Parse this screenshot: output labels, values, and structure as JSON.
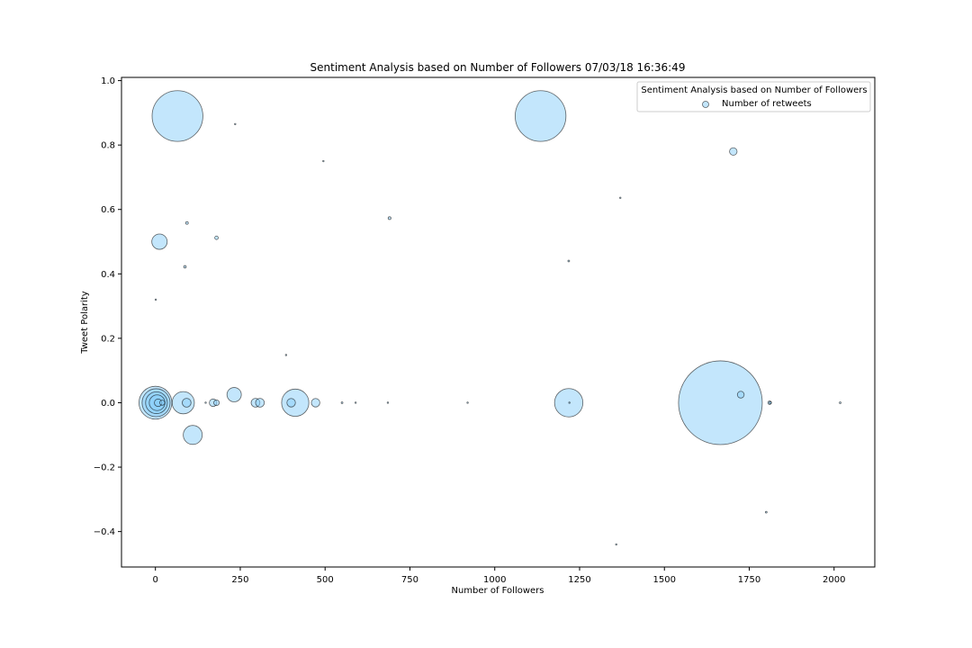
{
  "chart_data": {
    "type": "scatter",
    "title": "Sentiment Analysis based on Number of Followers 07/03/18 16:36:49",
    "xlabel": "Number of Followers",
    "ylabel": "Tweet Polarity",
    "xlim": [
      -100,
      2120
    ],
    "ylim": [
      -0.51,
      1.01
    ],
    "xticks": [
      0,
      250,
      500,
      750,
      1000,
      1250,
      1500,
      1750,
      2000
    ],
    "xtick_labels": [
      "0",
      "250",
      "500",
      "750",
      "1000",
      "1250",
      "1500",
      "1750",
      "2000"
    ],
    "yticks": [
      -0.4,
      -0.2,
      0.0,
      0.2,
      0.4,
      0.6,
      0.8,
      1.0
    ],
    "ytick_labels": [
      "−0.4",
      "−0.2",
      "0.0",
      "0.2",
      "0.4",
      "0.6",
      "0.8",
      "1.0"
    ],
    "grid": false,
    "legend": {
      "title": "Sentiment Analysis based on Number of Followers",
      "placement": "top-right",
      "entries": [
        "Number of retweets"
      ]
    },
    "colors": {
      "marker_fill": "#87CEFA",
      "marker_edge": "#000000"
    },
    "series": [
      {
        "name": "Number of retweets",
        "points": [
          {
            "x": 65,
            "y": 0.89,
            "size": 2500
          },
          {
            "x": 1135,
            "y": 0.89,
            "size": 2500
          },
          {
            "x": 1665,
            "y": 0.0,
            "size": 6800
          },
          {
            "x": 0,
            "y": 0.0,
            "size": 1050
          },
          {
            "x": 2,
            "y": 0.0,
            "size": 760
          },
          {
            "x": 3,
            "y": 0.0,
            "size": 460
          },
          {
            "x": 5,
            "y": 0.0,
            "size": 240
          },
          {
            "x": 8,
            "y": 0.0,
            "size": 55
          },
          {
            "x": 20,
            "y": 0.0,
            "size": 25
          },
          {
            "x": 82,
            "y": 0.0,
            "size": 480
          },
          {
            "x": 92,
            "y": 0.0,
            "size": 75
          },
          {
            "x": 110,
            "y": -0.1,
            "size": 350
          },
          {
            "x": 12,
            "y": 0.5,
            "size": 230
          },
          {
            "x": 232,
            "y": 0.025,
            "size": 200
          },
          {
            "x": 412,
            "y": 0.0,
            "size": 720
          },
          {
            "x": 1218,
            "y": 0.0,
            "size": 780
          },
          {
            "x": 170,
            "y": 0.0,
            "size": 55
          },
          {
            "x": 180,
            "y": 0.0,
            "size": 30
          },
          {
            "x": 295,
            "y": 0.0,
            "size": 75
          },
          {
            "x": 308,
            "y": 0.0,
            "size": 75
          },
          {
            "x": 400,
            "y": 0.0,
            "size": 70
          },
          {
            "x": 472,
            "y": 0.0,
            "size": 70
          },
          {
            "x": 1703,
            "y": 0.78,
            "size": 55
          },
          {
            "x": 1725,
            "y": 0.025,
            "size": 45
          },
          {
            "x": 1810,
            "y": 0.0,
            "size": 12
          },
          {
            "x": 1812,
            "y": 0.0,
            "size": 5
          },
          {
            "x": 690,
            "y": 0.573,
            "size": 8
          },
          {
            "x": 180,
            "y": 0.512,
            "size": 12
          },
          {
            "x": 93,
            "y": 0.558,
            "size": 7
          },
          {
            "x": 87,
            "y": 0.422,
            "size": 6
          },
          {
            "x": 235,
            "y": 0.865,
            "size": 2
          },
          {
            "x": 495,
            "y": 0.75,
            "size": 2
          },
          {
            "x": 1370,
            "y": 0.636,
            "size": 2
          },
          {
            "x": 1218,
            "y": 0.44,
            "size": 3
          },
          {
            "x": 1,
            "y": 0.32,
            "size": 2
          },
          {
            "x": 385,
            "y": 0.148,
            "size": 2
          },
          {
            "x": 148,
            "y": 0.0,
            "size": 2
          },
          {
            "x": 550,
            "y": 0.0,
            "size": 3
          },
          {
            "x": 590,
            "y": 0.0,
            "size": 2
          },
          {
            "x": 685,
            "y": 0.0,
            "size": 2
          },
          {
            "x": 920,
            "y": 0.0,
            "size": 2
          },
          {
            "x": 1220,
            "y": 0.0,
            "size": 2
          },
          {
            "x": 2018,
            "y": 0.0,
            "size": 3
          },
          {
            "x": 1800,
            "y": -0.34,
            "size": 3
          },
          {
            "x": 1358,
            "y": -0.44,
            "size": 2
          }
        ]
      }
    ]
  }
}
